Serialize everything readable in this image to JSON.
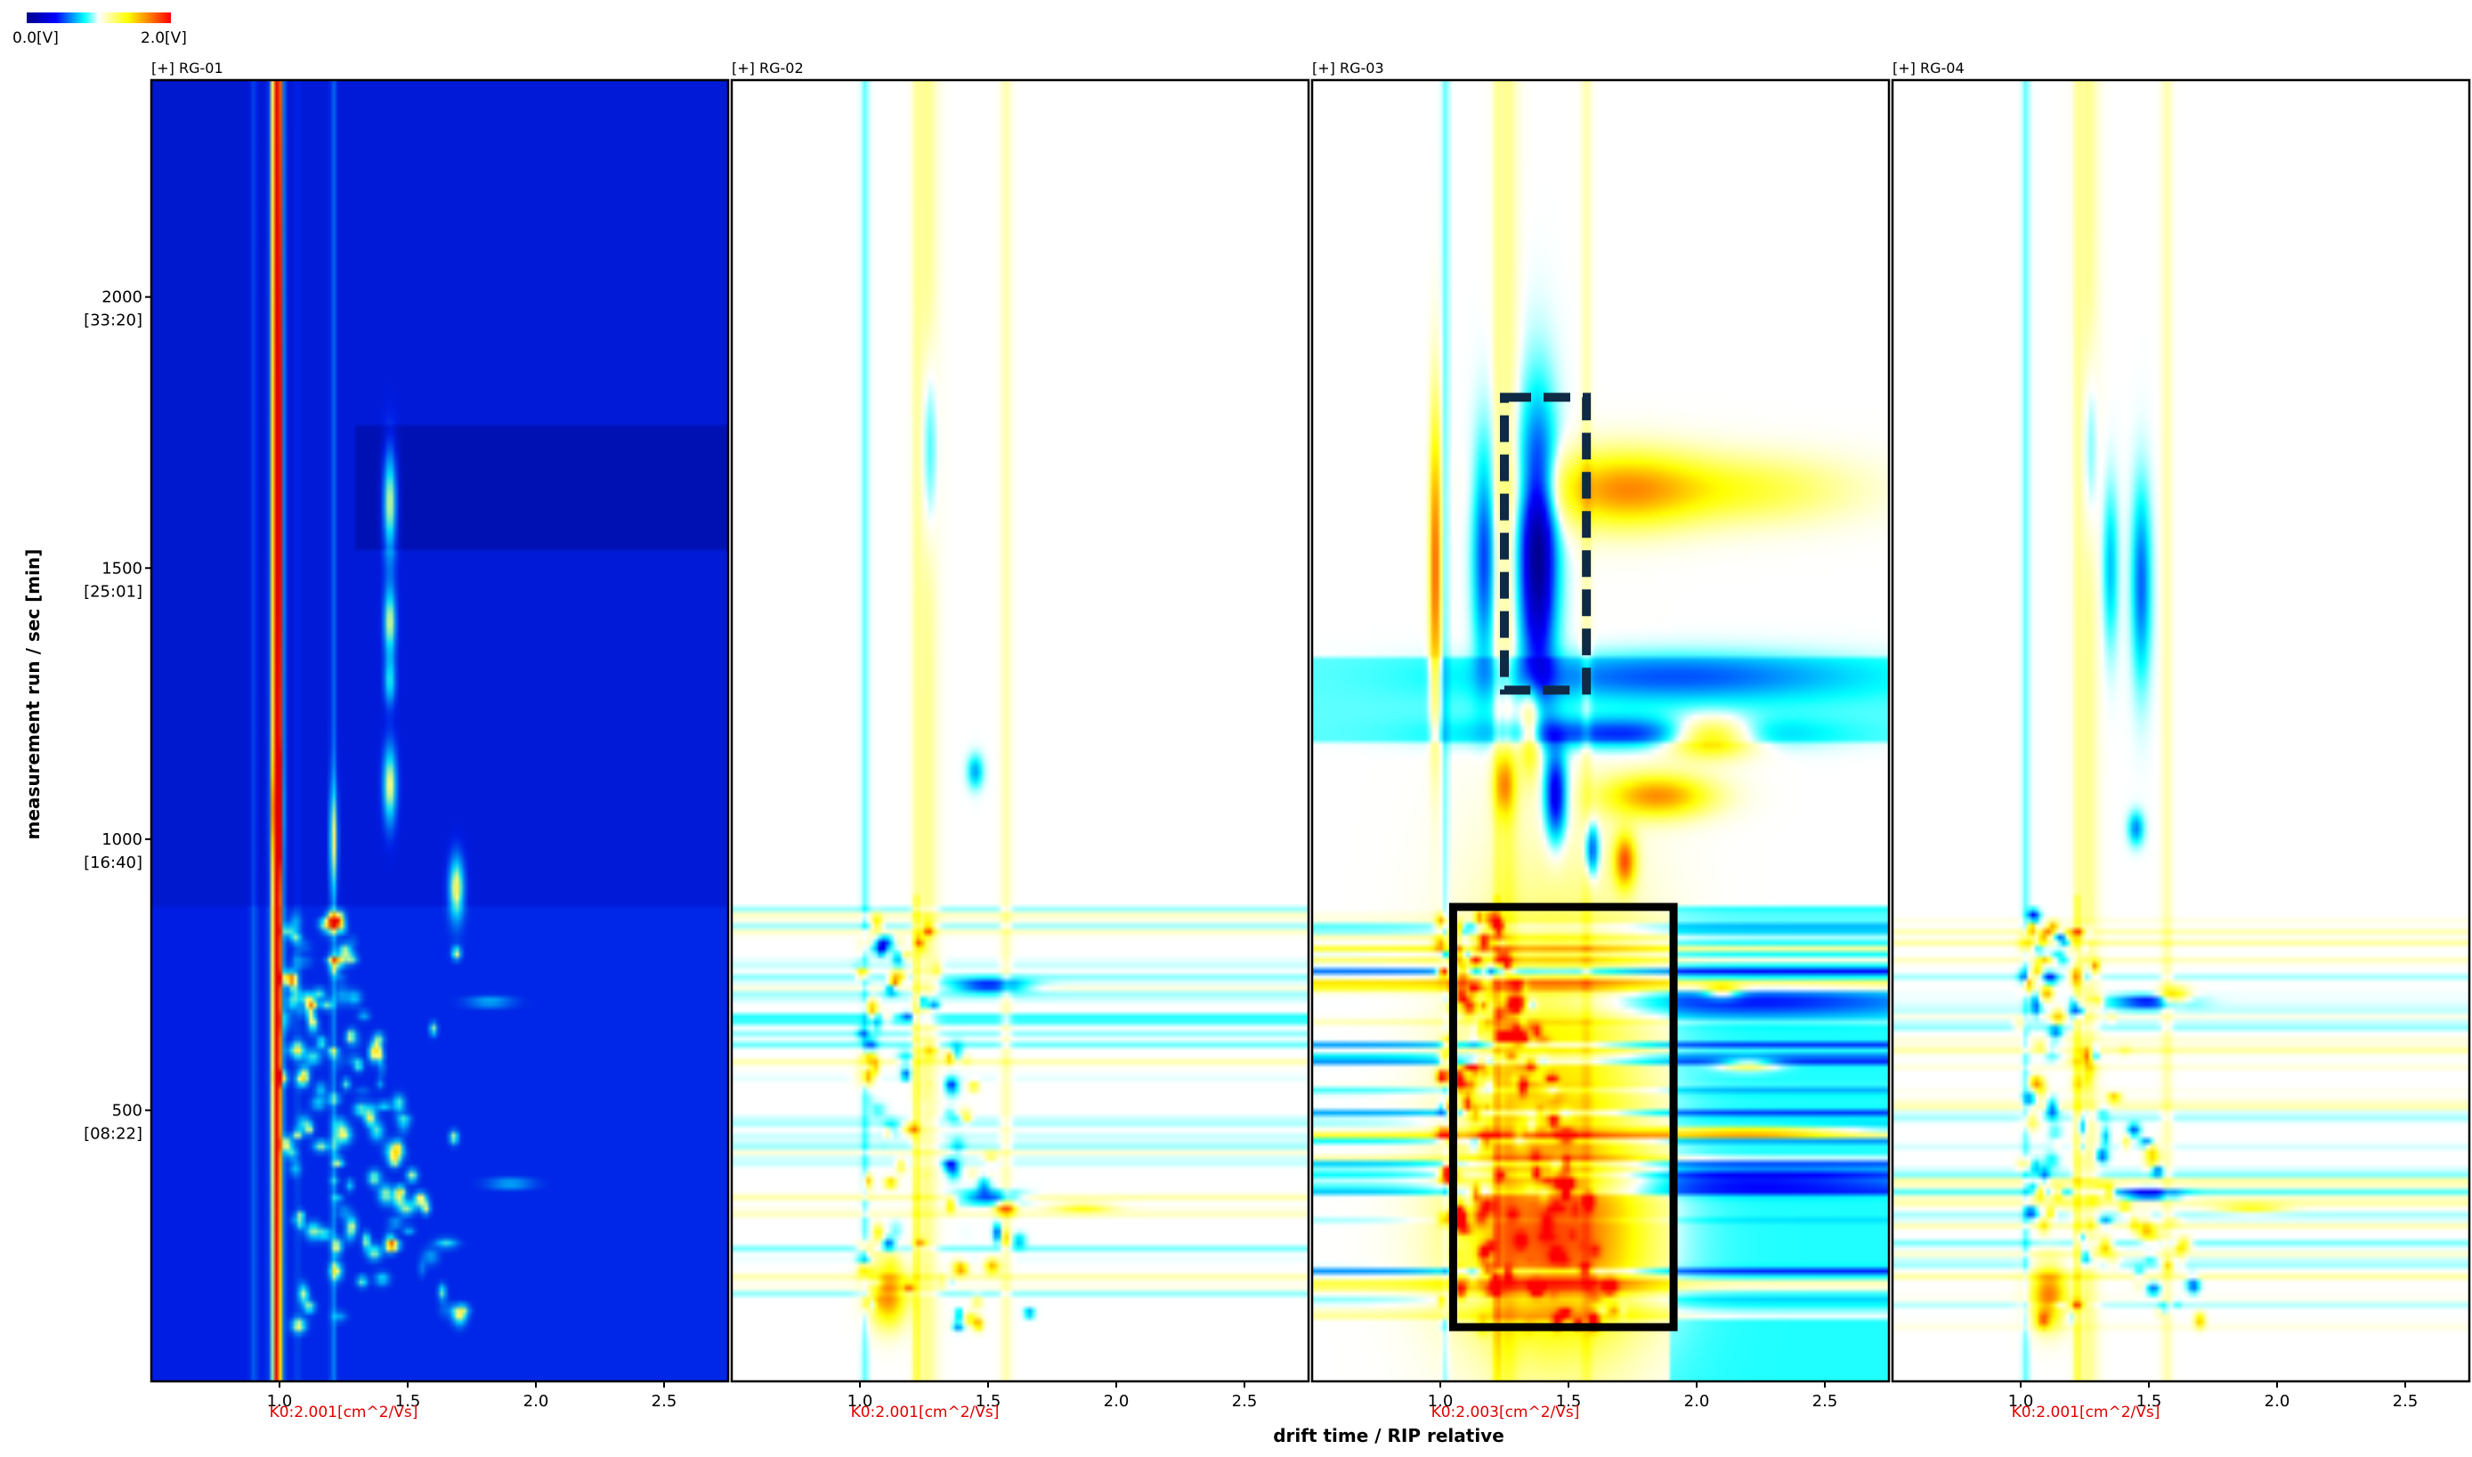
{
  "chart_data": {
    "type": "heatmap",
    "title": "",
    "colorbar": {
      "min_label": "0.0[V]",
      "max_label": "2.0[V]",
      "min": 0.0,
      "max": 2.0,
      "stops": [
        "#00008c",
        "#0000ff",
        "#00ffff",
        "#ffffff",
        "#ffff00",
        "#ff0000"
      ]
    },
    "ylabel": "measurement run / sec [min]",
    "xlabel": "drift time / RIP relative",
    "xlim": [
      0.5,
      2.75
    ],
    "ylim": [
      0,
      2400
    ],
    "x_ticks": [
      {
        "value": 1.0,
        "label": "1.0"
      },
      {
        "value": 1.5,
        "label": "1.5"
      },
      {
        "value": 2.0,
        "label": "2.0"
      },
      {
        "value": 2.5,
        "label": "2.5"
      }
    ],
    "y_ticks": [
      {
        "value": 2000,
        "label": "2000",
        "sublabel": "[33:20]"
      },
      {
        "value": 1500,
        "label": "1500",
        "sublabel": "[25:01]"
      },
      {
        "value": 1000,
        "label": "1000",
        "sublabel": "[16:40]"
      },
      {
        "value": 500,
        "label": "500",
        "sublabel": "[08:22]"
      }
    ],
    "panels": [
      {
        "id": "rg01",
        "label": "[+] RG-01",
        "k0": "K0:2.001[cm^2/Vs]",
        "mode": "intensity",
        "rip_x": 0.99
      },
      {
        "id": "rg02",
        "label": "[+] RG-02",
        "k0": "K0:2.001[cm^2/Vs]",
        "mode": "difference",
        "rip_x": 0.99
      },
      {
        "id": "rg03",
        "label": "[+] RG-03",
        "k0": "K0:2.003[cm^2/Vs]",
        "mode": "difference",
        "rip_x": 0.99,
        "highlights": [
          {
            "style": "dashed",
            "x": [
              1.25,
              1.57
            ],
            "y": [
              1275,
              1815
            ]
          },
          {
            "style": "solid",
            "x": [
              1.05,
              1.91
            ],
            "y": [
              100,
              875
            ]
          }
        ]
      },
      {
        "id": "rg04",
        "label": "[+] RG-04",
        "k0": "K0:2.001[cm^2/Vs]",
        "mode": "difference",
        "rip_x": 0.99
      }
    ],
    "features_intensity": [
      {
        "x": 0.99,
        "y": 1650,
        "sx": 0.015,
        "sy": 900,
        "v": 2.0
      },
      {
        "x": 0.99,
        "y": 1050,
        "sx": 0.013,
        "sy": 60,
        "v": 1.6
      },
      {
        "x": 1.21,
        "y": 1000,
        "sx": 0.011,
        "sy": 70,
        "v": 1.3
      },
      {
        "x": 1.43,
        "y": 1620,
        "sx": 0.018,
        "sy": 70,
        "v": 1.9
      },
      {
        "x": 1.43,
        "y": 1400,
        "sx": 0.016,
        "sy": 45,
        "v": 1.7
      },
      {
        "x": 1.43,
        "y": 1290,
        "sx": 0.015,
        "sy": 30,
        "v": 1.2
      },
      {
        "x": 1.43,
        "y": 1100,
        "sx": 0.018,
        "sy": 50,
        "v": 1.8
      },
      {
        "x": 1.69,
        "y": 910,
        "sx": 0.02,
        "sy": 40,
        "v": 1.9
      },
      {
        "x": 1.69,
        "y": 790,
        "sx": 0.012,
        "sy": 8,
        "v": 1.7
      },
      {
        "x": 1.68,
        "y": 450,
        "sx": 0.012,
        "sy": 8,
        "v": 1.6
      },
      {
        "x": 1.47,
        "y": 350,
        "sx": 0.015,
        "sy": 8,
        "v": 1.8
      },
      {
        "x": 1.6,
        "y": 650,
        "sx": 0.01,
        "sy": 8,
        "v": 1.4
      },
      {
        "x": 1.57,
        "y": 320,
        "sx": 0.012,
        "sy": 8,
        "v": 1.5
      },
      {
        "x": 1.65,
        "y": 255,
        "sx": 0.03,
        "sy": 6,
        "v": 1.1
      },
      {
        "x": 1.9,
        "y": 365,
        "sx": 0.06,
        "sy": 6,
        "v": 0.9
      },
      {
        "x": 1.82,
        "y": 700,
        "sx": 0.06,
        "sy": 6,
        "v": 0.9
      }
    ],
    "features_rg02": [
      {
        "x": 1.27,
        "y": 1720,
        "sx": 0.02,
        "sy": 120,
        "v": -0.6
      },
      {
        "x": 1.5,
        "y": 730,
        "sx": 0.1,
        "sy": 8,
        "v": -1.3
      },
      {
        "x": 1.5,
        "y": 340,
        "sx": 0.08,
        "sy": 8,
        "v": -1.2
      },
      {
        "x": 1.87,
        "y": 320,
        "sx": 0.08,
        "sy": 6,
        "v": 0.7
      },
      {
        "x": 1.11,
        "y": 160,
        "sx": 0.05,
        "sy": 40,
        "v": 1.4
      },
      {
        "x": 1.45,
        "y": 1125,
        "sx": 0.02,
        "sy": 20,
        "v": -0.7
      }
    ],
    "features_rg03": [
      {
        "x": 1.38,
        "y": 1530,
        "sx": 0.05,
        "sy": 170,
        "v": -2.0
      },
      {
        "x": 1.17,
        "y": 1520,
        "sx": 0.03,
        "sy": 140,
        "v": -1.0
      },
      {
        "x": 0.98,
        "y": 1500,
        "sx": 0.015,
        "sy": 200,
        "v": 1.6
      },
      {
        "x": 1.7,
        "y": 1645,
        "sx": 0.22,
        "sy": 50,
        "v": 1.2
      },
      {
        "x": 2.2,
        "y": 1645,
        "sx": 0.3,
        "sy": 45,
        "v": 0.6
      },
      {
        "x": 1.9,
        "y": 1300,
        "sx": 0.5,
        "sy": 30,
        "v": -0.7
      },
      {
        "x": 2.05,
        "y": 1190,
        "sx": 0.12,
        "sy": 25,
        "v": 1.6
      },
      {
        "x": 1.75,
        "y": 1195,
        "sx": 0.4,
        "sy": 20,
        "v": -0.9
      },
      {
        "x": 1.85,
        "y": 1080,
        "sx": 0.15,
        "sy": 28,
        "v": 1.3
      },
      {
        "x": 1.45,
        "y": 1080,
        "sx": 0.03,
        "sy": 60,
        "v": -1.5
      },
      {
        "x": 1.72,
        "y": 960,
        "sx": 0.03,
        "sy": 35,
        "v": 1.5
      },
      {
        "x": 1.59,
        "y": 980,
        "sx": 0.02,
        "sy": 35,
        "v": -1.2
      },
      {
        "x": 1.35,
        "y": 1200,
        "sx": 0.03,
        "sy": 60,
        "v": 1.1
      },
      {
        "x": 1.25,
        "y": 1100,
        "sx": 0.03,
        "sy": 40,
        "v": 1.0
      },
      {
        "x": 2.1,
        "y": 720,
        "sx": 0.05,
        "sy": 10,
        "v": 1.0
      },
      {
        "x": 2.2,
        "y": 460,
        "sx": 0.25,
        "sy": 7,
        "v": 1.3
      },
      {
        "x": 2.2,
        "y": 585,
        "sx": 0.08,
        "sy": 8,
        "v": 1.1
      },
      {
        "x": 1.45,
        "y": 500,
        "sx": 0.25,
        "sy": 300,
        "v": 0.9
      },
      {
        "x": 1.45,
        "y": 250,
        "sx": 0.25,
        "sy": 120,
        "v": 1.0
      },
      {
        "x": 2.2,
        "y": 700,
        "sx": 0.5,
        "sy": 20,
        "v": -0.8
      },
      {
        "x": 2.2,
        "y": 370,
        "sx": 0.5,
        "sy": 15,
        "v": -0.7
      }
    ],
    "features_rg04": [
      {
        "x": 1.27,
        "y": 1720,
        "sx": 0.02,
        "sy": 120,
        "v": -0.5
      },
      {
        "x": 1.47,
        "y": 1470,
        "sx": 0.025,
        "sy": 120,
        "v": -0.9
      },
      {
        "x": 1.35,
        "y": 1500,
        "sx": 0.02,
        "sy": 100,
        "v": -0.6
      },
      {
        "x": 1.5,
        "y": 700,
        "sx": 0.1,
        "sy": 8,
        "v": -1.3
      },
      {
        "x": 1.5,
        "y": 345,
        "sx": 0.08,
        "sy": 8,
        "v": -1.2
      },
      {
        "x": 1.9,
        "y": 320,
        "sx": 0.09,
        "sy": 6,
        "v": 0.7
      },
      {
        "x": 1.11,
        "y": 160,
        "sx": 0.05,
        "sy": 40,
        "v": 1.4
      },
      {
        "x": 1.45,
        "y": 1020,
        "sx": 0.02,
        "sy": 20,
        "v": -0.8
      },
      {
        "x": 1.6,
        "y": 710,
        "sx": 0.04,
        "sy": 12,
        "v": 1.1
      }
    ]
  }
}
